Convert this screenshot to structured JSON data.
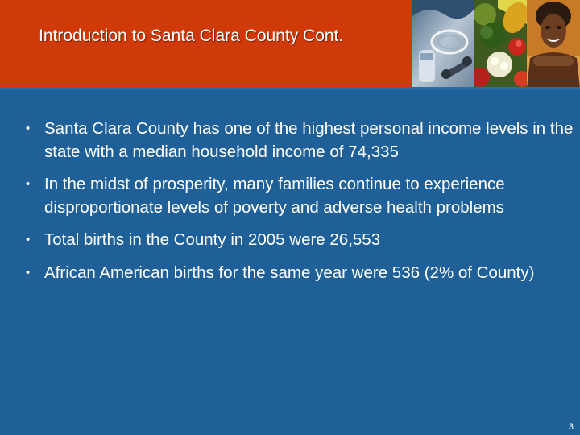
{
  "slide": {
    "title": "Introduction to Santa Clara County Cont.",
    "page_number": "3",
    "colors": {
      "header": "#D03A08",
      "background": "#1F6099",
      "text": "#FFFFFF"
    }
  },
  "header_images": [
    {
      "icon": "fitness-equipment-photo"
    },
    {
      "icon": "vegetables-photo"
    },
    {
      "icon": "smiling-woman-photo"
    }
  ],
  "bullets": [
    {
      "text": "Santa Clara County has one of the highest personal income levels in the state with a median household income of 74,335"
    },
    {
      "text": "In the midst of prosperity, many families continue to experience disproportionate levels of poverty and adverse health problems"
    },
    {
      "text": "Total births in the County in 2005 were 26,553"
    },
    {
      "text": "African American births for the same year were 536 (2% of County)"
    }
  ]
}
